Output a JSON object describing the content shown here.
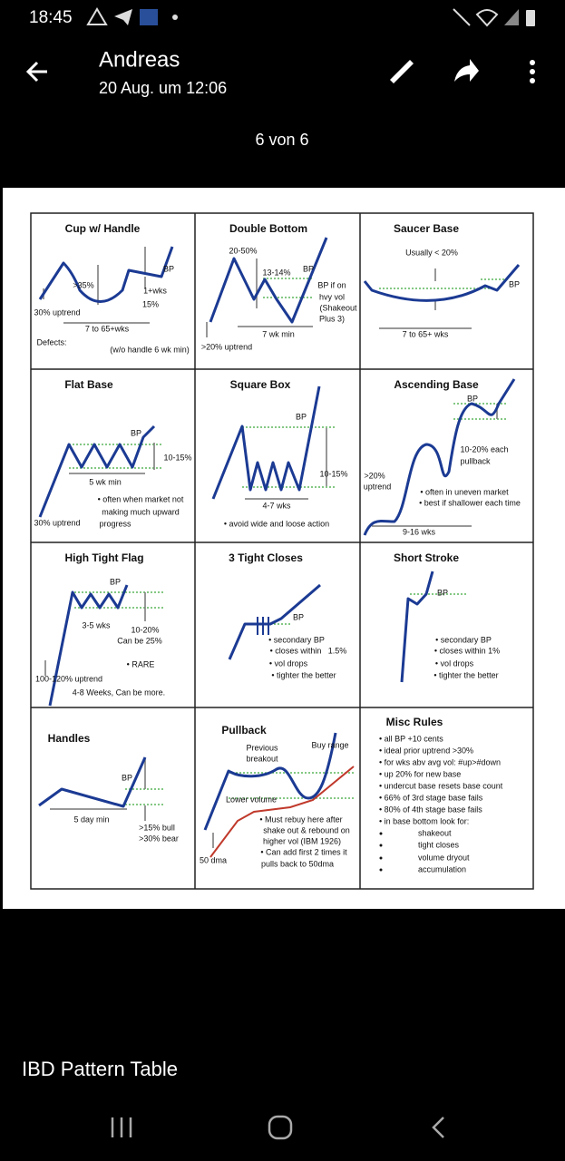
{
  "status_bar": {
    "time": "18:45"
  },
  "header": {
    "sender": "Andreas",
    "date": "20 Aug. um 12:06",
    "counter": "6 von 6"
  },
  "table": {
    "cells": [
      {
        "title": "Cup w/ Handle",
        "labels": [
          "BP",
          ">35%",
          "1+wks",
          "15%",
          "30% uptrend",
          "7 to 65+wks",
          "Defects:",
          "(w/o handle 6 wk min)"
        ]
      },
      {
        "title": "Double Bottom",
        "labels": [
          "20-50%",
          "13-14%",
          "BP",
          "BP if on",
          "hvy vol",
          "(Shakeout",
          "Plus 3)",
          "7 wk min",
          ">20% uptrend"
        ]
      },
      {
        "title": "Saucer Base",
        "labels": [
          "Usually < 20%",
          "BP",
          "7 to 65+ wks"
        ]
      },
      {
        "title": "Flat Base",
        "labels": [
          "BP",
          "10-15%",
          "5 wk min",
          "• often when market not",
          "making much upward",
          "progress",
          "30% uptrend"
        ]
      },
      {
        "title": "Square Box",
        "labels": [
          "BP",
          "10-15%",
          "4-7 wks",
          "• avoid wide and loose action"
        ]
      },
      {
        "title": "Ascending Base",
        "labels": [
          "BP",
          "10-20% each",
          "pullback",
          ">20%",
          "uptrend",
          "• often in uneven market",
          "• best if shallower each time",
          "9-16 wks"
        ]
      },
      {
        "title": "High Tight Flag",
        "labels": [
          "BP",
          "3-5 wks",
          "10-20%",
          "Can be 25%",
          "• RARE",
          "100-120% uptrend",
          "4-8 Weeks, Can be more."
        ]
      },
      {
        "title": "3 Tight Closes",
        "labels": [
          "BP",
          "• secondary BP",
          "• closes within",
          "1.5%",
          "• vol drops",
          "• tighter the better"
        ]
      },
      {
        "title": "Short Stroke",
        "labels": [
          "BP",
          "• secondary BP",
          "• closes within 1%",
          "• vol drops",
          "• tighter the better"
        ]
      },
      {
        "title": "Handles",
        "labels": [
          "BP",
          "5 day min",
          ">15% bull",
          ">30% bear"
        ]
      },
      {
        "title": "Pullback",
        "labels": [
          "Previous",
          "breakout",
          "Buy range",
          "Lower volume",
          "• Must rebuy here after",
          "shake out & rebound on",
          "higher vol (IBM 1926)",
          "• Can add first 2 times it",
          "pulls back to 50dma",
          "50 dma"
        ]
      },
      {
        "title": "Misc Rules",
        "labels": [
          "• all BP +10 cents",
          "• ideal prior uptrend >30%",
          "• for wks abv avg vol: #up>#down",
          "• up 20% for new base",
          "• undercut base resets base count",
          "• 66% of 3rd stage base fails",
          "• 80% of 4th stage base fails",
          "• in base bottom look for:",
          "shakeout",
          "tight closes",
          "volume dryout",
          "accumulation"
        ]
      }
    ]
  },
  "caption": "IBD Pattern Table"
}
